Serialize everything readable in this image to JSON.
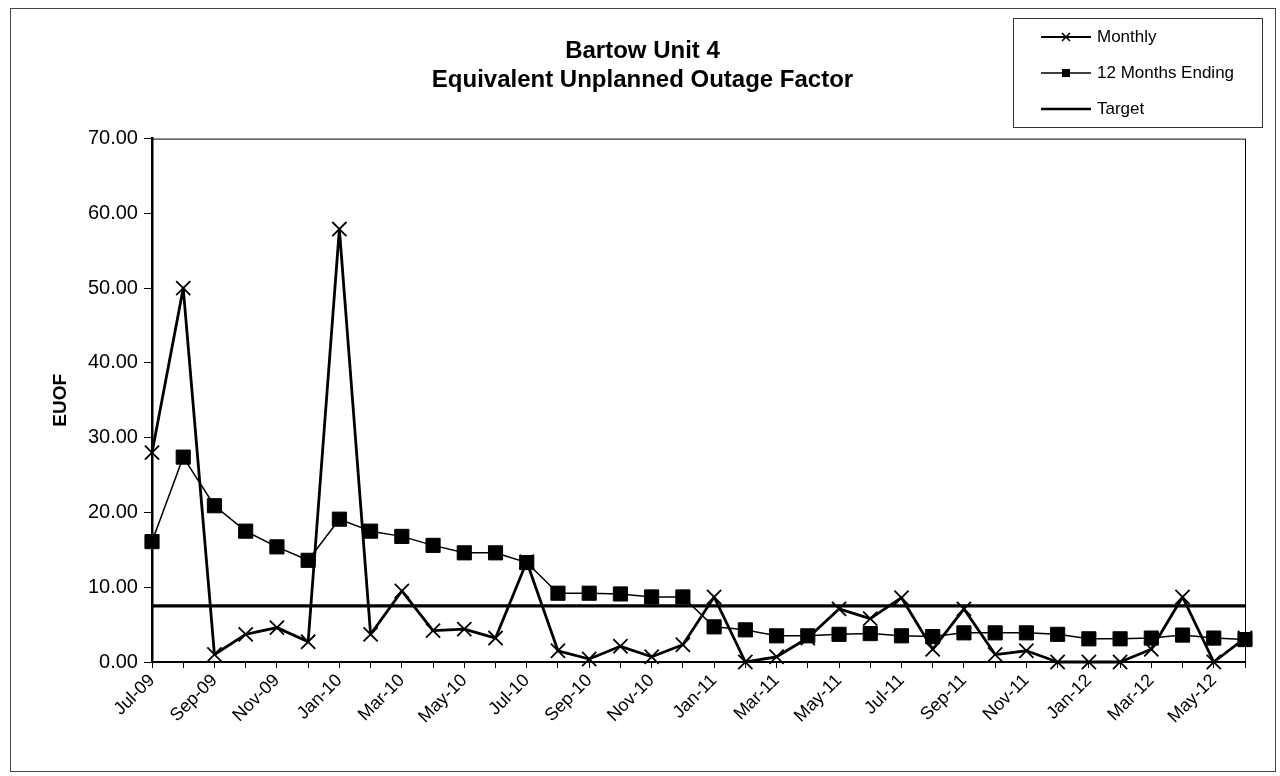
{
  "chart_data": {
    "type": "line",
    "title": "Bartow Unit 4",
    "subtitle": "Equivalent Unplanned Outage Factor",
    "ylabel": "EUOF",
    "categories": [
      "Jul-09",
      null,
      "Sep-09",
      null,
      "Nov-09",
      null,
      "Jan-10",
      null,
      "Mar-10",
      null,
      "May-10",
      null,
      "Jul-10",
      null,
      "Sep-10",
      null,
      "Nov-10",
      null,
      "Jan-11",
      null,
      "Mar-11",
      null,
      "May-11",
      null,
      "Jul-11",
      null,
      "Sep-11",
      null,
      "Nov-11",
      null,
      "Jan-12",
      null,
      "Mar-12",
      null,
      "May-12",
      null
    ],
    "series": [
      {
        "name": "Monthly",
        "color": "#000000",
        "marker": "cross",
        "values": [
          28.0,
          50.0,
          1.0,
          3.7,
          4.6,
          2.7,
          57.9,
          3.7,
          9.5,
          4.2,
          4.4,
          3.2,
          13.4,
          1.5,
          0.4,
          2.1,
          0.7,
          2.3,
          8.7,
          0.0,
          0.7,
          3.2,
          7.1,
          5.8,
          8.6,
          1.7,
          7.1,
          1.0,
          1.5,
          0.0,
          0.0,
          0.0,
          1.7,
          8.7,
          0.0,
          3.2
        ]
      },
      {
        "name": "12 Months Ending",
        "color": "#000000",
        "marker": "square",
        "values": [
          16.1,
          27.4,
          20.9,
          17.5,
          15.4,
          13.6,
          19.1,
          17.5,
          16.8,
          15.6,
          14.6,
          14.6,
          13.3,
          9.2,
          9.2,
          9.1,
          8.7,
          8.7,
          4.7,
          4.3,
          3.5,
          3.5,
          3.7,
          3.8,
          3.5,
          3.4,
          3.9,
          3.9,
          3.9,
          3.7,
          3.1,
          3.1,
          3.2,
          3.6,
          3.2,
          3.0
        ]
      }
    ],
    "ref_lines": [
      {
        "axis": "y",
        "value": 7.5,
        "label": "Target",
        "color": "#000000"
      }
    ],
    "ylim": [
      0,
      70
    ],
    "yticks": [
      {
        "value": 0,
        "label": "0.00"
      },
      {
        "value": 10,
        "label": "10.00"
      },
      {
        "value": 20,
        "label": "20.00"
      },
      {
        "value": 30,
        "label": "30.00"
      },
      {
        "value": 40,
        "label": "40.00"
      },
      {
        "value": 50,
        "label": "50.00"
      },
      {
        "value": 60,
        "label": "60.00"
      },
      {
        "value": 70,
        "label": "70.00"
      }
    ],
    "grid": false,
    "legend": "top right"
  }
}
